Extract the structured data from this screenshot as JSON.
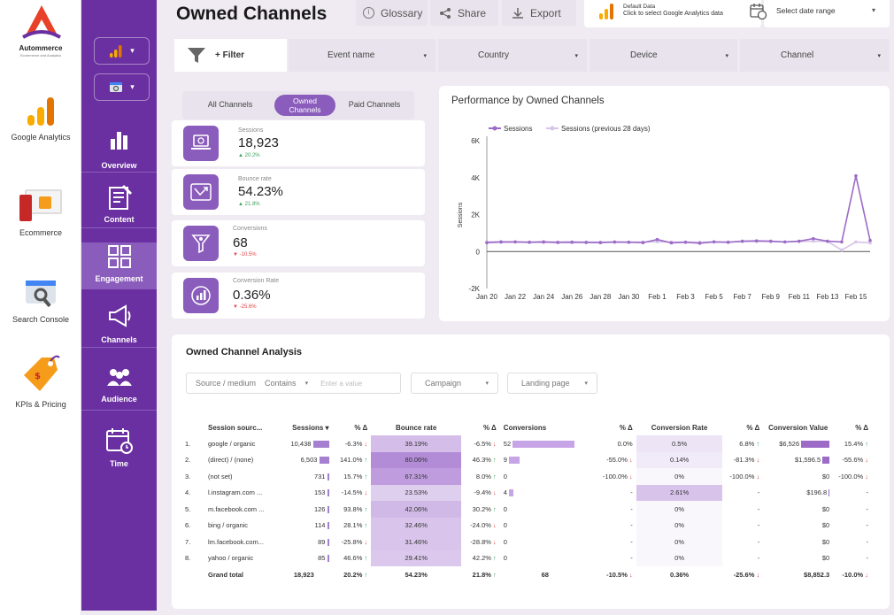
{
  "brand": {
    "name": "Autommerce",
    "tagline": "Ecommerce and Analytics",
    "accent": "#6a2fa0"
  },
  "left_nav": [
    {
      "label": "Google Analytics",
      "icon": "google-analytics-icon"
    },
    {
      "label": "Ecommerce",
      "icon": "ecommerce-icon"
    },
    {
      "label": "Search Console",
      "icon": "search-console-icon"
    },
    {
      "label": "KPIs & Pricing",
      "icon": "price-tag-icon"
    }
  ],
  "section_nav": [
    {
      "label": "Overview",
      "icon": "bar-chart-icon"
    },
    {
      "label": "Content",
      "icon": "content-icon"
    },
    {
      "label": "Engagement",
      "icon": "grid-icon",
      "active": true
    },
    {
      "label": "Channels",
      "icon": "megaphone-icon"
    },
    {
      "label": "Audience",
      "icon": "audience-icon"
    },
    {
      "label": "Time",
      "icon": "calendar-icon"
    }
  ],
  "header": {
    "title": "Owned Channels",
    "glossary": "Glossary",
    "share": "Share",
    "export": "Export",
    "data_source_title": "Default Data",
    "data_source_hint": "Click to select Google Analytics data",
    "date_range": "Select date range"
  },
  "controls": {
    "filter": "+ Filter",
    "event_name": "Event name",
    "country": "Country",
    "device": "Device",
    "channel": "Channel"
  },
  "channel_tabs": [
    "All Channels",
    "Owned Channels",
    "Paid Channels"
  ],
  "kpis": [
    {
      "label": "Sessions",
      "value": "18,923",
      "delta": "20.2%",
      "dir": "up",
      "icon": "laptop-icon"
    },
    {
      "label": "Bounce rate",
      "value": "54.23%",
      "delta": "21.8%",
      "dir": "up",
      "icon": "bounce-icon"
    },
    {
      "label": "Conversions",
      "value": "68",
      "delta": "-10.5%",
      "dir": "down",
      "icon": "funnel-icon"
    },
    {
      "label": "Conversion Rate",
      "value": "0.36%",
      "delta": "-25.6%",
      "dir": "down",
      "icon": "conversion-icon"
    }
  ],
  "chart_data": {
    "type": "line",
    "title": "Performance by Owned Channels",
    "ylabel": "Sessions",
    "xlabel": "",
    "x_ticks": [
      "Jan 20",
      "Jan 22",
      "Jan 24",
      "Jan 26",
      "Jan 28",
      "Jan 30",
      "Feb 1",
      "Feb 3",
      "Feb 5",
      "Feb 7",
      "Feb 9",
      "Feb 11",
      "Feb 13",
      "Feb 15"
    ],
    "y_ticks": [
      "6K",
      "4K",
      "2K",
      "0",
      "-2K"
    ],
    "ylim": [
      -2000,
      6000
    ],
    "legend_position": "top-left",
    "x": [
      "Jan 20",
      "Jan 21",
      "Jan 22",
      "Jan 23",
      "Jan 24",
      "Jan 25",
      "Jan 26",
      "Jan 27",
      "Jan 28",
      "Jan 29",
      "Jan 30",
      "Jan 31",
      "Feb 1",
      "Feb 2",
      "Feb 3",
      "Feb 4",
      "Feb 5",
      "Feb 6",
      "Feb 7",
      "Feb 8",
      "Feb 9",
      "Feb 10",
      "Feb 11",
      "Feb 12",
      "Feb 13",
      "Feb 14",
      "Feb 15",
      "Feb 16"
    ],
    "series": [
      {
        "name": "Sessions",
        "color": "#9b6bc7",
        "values": [
          480,
          510,
          520,
          500,
          510,
          490,
          500,
          490,
          480,
          510,
          500,
          480,
          650,
          470,
          500,
          450,
          520,
          500,
          560,
          580,
          560,
          520,
          560,
          700,
          560,
          520,
          4100,
          600
        ]
      },
      {
        "name": "Sessions (previous 28 days)",
        "color": "#d7c4e6",
        "values": [
          520,
          540,
          530,
          520,
          540,
          520,
          530,
          520,
          510,
          530,
          520,
          510,
          530,
          510,
          520,
          500,
          530,
          520,
          540,
          550,
          540,
          520,
          540,
          560,
          540,
          80,
          520,
          470
        ]
      }
    ]
  },
  "analysis": {
    "title": "Owned Channel Analysis",
    "filter_dim": "Source / medium",
    "filter_op": "Contains",
    "filter_placeholder": "Enter a value",
    "campaign": "Campaign",
    "landing_page": "Landing page",
    "headers": [
      "Session sourc...",
      "Sessions ▾",
      "% Δ",
      "Bounce rate",
      "% Δ",
      "Conversions",
      "% Δ",
      "Conversion Rate",
      "% Δ",
      "Conversion Value",
      "% Δ"
    ],
    "rows": [
      {
        "n": "1.",
        "src": "google / organic",
        "ses": "10,438",
        "ses_v": 10438,
        "d1": "-6.3%",
        "d1d": "dn",
        "br": "39.19%",
        "br_v": 39.19,
        "d2": "-6.5%",
        "d2d": "dn",
        "conv": "52",
        "conv_v": 52,
        "d3": "0.0%",
        "d3d": "",
        "cr": "0.5%",
        "cr_v": 0.5,
        "d4": "6.8%",
        "d4d": "up",
        "cv": "$6,526",
        "cv_v": 6526,
        "d5": "15.4%",
        "d5d": "up"
      },
      {
        "n": "2.",
        "src": "(direct) / (none)",
        "ses": "6,503",
        "ses_v": 6503,
        "d1": "141.0%",
        "d1d": "up",
        "br": "80.06%",
        "br_v": 80.06,
        "d2": "46.3%",
        "d2d": "up",
        "conv": "9",
        "conv_v": 9,
        "d3": "-55.0%",
        "d3d": "dn",
        "cr": "0.14%",
        "cr_v": 0.14,
        "d4": "-81.3%",
        "d4d": "dn",
        "cv": "$1,596.5",
        "cv_v": 1596.5,
        "d5": "-55.6%",
        "d5d": "dn"
      },
      {
        "n": "3.",
        "src": "(not set)",
        "ses": "731",
        "ses_v": 731,
        "d1": "15.7%",
        "d1d": "up",
        "br": "67.31%",
        "br_v": 67.31,
        "d2": "8.0%",
        "d2d": "up",
        "conv": "0",
        "conv_v": 0,
        "d3": "-100.0%",
        "d3d": "dn",
        "cr": "0%",
        "cr_v": 0,
        "d4": "-100.0%",
        "d4d": "dn",
        "cv": "$0",
        "cv_v": 0,
        "d5": "-100.0%",
        "d5d": "dn"
      },
      {
        "n": "4.",
        "src": "l.instagram.com ...",
        "ses": "153",
        "ses_v": 153,
        "d1": "-14.5%",
        "d1d": "dn",
        "br": "23.53%",
        "br_v": 23.53,
        "d2": "-9.4%",
        "d2d": "dn",
        "conv": "4",
        "conv_v": 4,
        "d3": "-",
        "d3d": "",
        "cr": "2.61%",
        "cr_v": 2.61,
        "d4": "-",
        "d4d": "",
        "cv": "$196.8",
        "cv_v": 196.8,
        "d5": "-",
        "d5d": ""
      },
      {
        "n": "5.",
        "src": "m.facebook.com ...",
        "ses": "126",
        "ses_v": 126,
        "d1": "93.8%",
        "d1d": "up",
        "br": "42.06%",
        "br_v": 42.06,
        "d2": "30.2%",
        "d2d": "up",
        "conv": "0",
        "conv_v": 0,
        "d3": "-",
        "d3d": "",
        "cr": "0%",
        "cr_v": 0,
        "d4": "-",
        "d4d": "",
        "cv": "$0",
        "cv_v": 0,
        "d5": "-",
        "d5d": ""
      },
      {
        "n": "6.",
        "src": "bing / organic",
        "ses": "114",
        "ses_v": 114,
        "d1": "28.1%",
        "d1d": "up",
        "br": "32.46%",
        "br_v": 32.46,
        "d2": "-24.0%",
        "d2d": "dn",
        "conv": "0",
        "conv_v": 0,
        "d3": "-",
        "d3d": "",
        "cr": "0%",
        "cr_v": 0,
        "d4": "-",
        "d4d": "",
        "cv": "$0",
        "cv_v": 0,
        "d5": "-",
        "d5d": ""
      },
      {
        "n": "7.",
        "src": "lm.facebook.com...",
        "ses": "89",
        "ses_v": 89,
        "d1": "-25.8%",
        "d1d": "dn",
        "br": "31.46%",
        "br_v": 31.46,
        "d2": "-28.8%",
        "d2d": "dn",
        "conv": "0",
        "conv_v": 0,
        "d3": "-",
        "d3d": "",
        "cr": "0%",
        "cr_v": 0,
        "d4": "-",
        "d4d": "",
        "cv": "$0",
        "cv_v": 0,
        "d5": "-",
        "d5d": ""
      },
      {
        "n": "8.",
        "src": "yahoo / organic",
        "ses": "85",
        "ses_v": 85,
        "d1": "46.6%",
        "d1d": "up",
        "br": "29.41%",
        "br_v": 29.41,
        "d2": "42.2%",
        "d2d": "up",
        "conv": "0",
        "conv_v": 0,
        "d3": "-",
        "d3d": "",
        "cr": "0%",
        "cr_v": 0,
        "d4": "-",
        "d4d": "",
        "cv": "$0",
        "cv_v": 0,
        "d5": "-",
        "d5d": ""
      }
    ],
    "total": {
      "label": "Grand total",
      "ses": "18,923",
      "d1": "20.2%",
      "d1d": "up",
      "br": "54.23%",
      "d2": "21.8%",
      "d2d": "up",
      "conv": "68",
      "d3": "-10.5%",
      "d3d": "dn",
      "cr": "0.36%",
      "d4": "-25.6%",
      "d4d": "dn",
      "cv": "$8,852.3",
      "d5": "-10.0%",
      "d5d": "dn"
    }
  }
}
